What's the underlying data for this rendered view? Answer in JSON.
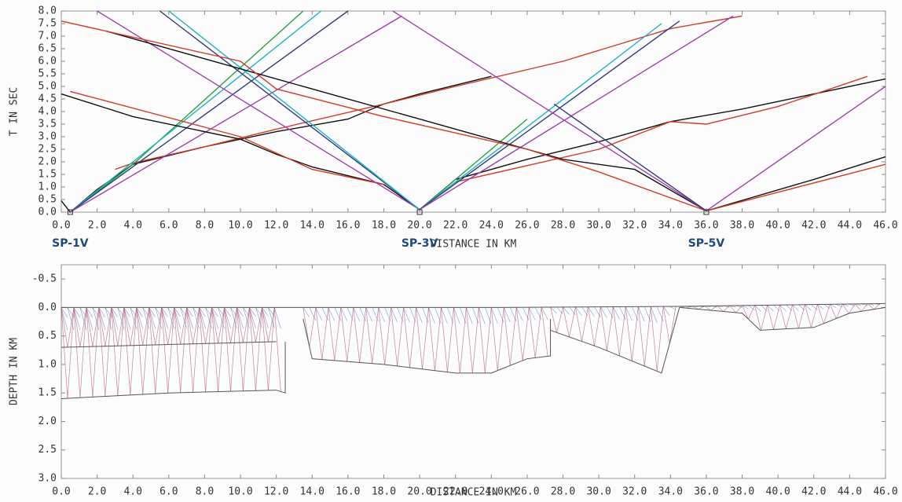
{
  "chart_data": [
    {
      "type": "line",
      "ylabel": "T IN SEC",
      "xlabel": "DISTANCE IN KM",
      "xlim": [
        0,
        46
      ],
      "ylim": [
        0,
        8
      ],
      "xticks": [
        {
          "value": 0,
          "label": "0.0"
        },
        {
          "value": 2,
          "label": "2.0"
        },
        {
          "value": 4,
          "label": "4.0"
        },
        {
          "value": 6,
          "label": "6.0"
        },
        {
          "value": 8,
          "label": "8.0"
        },
        {
          "value": 10,
          "label": "10.0"
        },
        {
          "value": 12,
          "label": "12.0"
        },
        {
          "value": 14,
          "label": "14.0"
        },
        {
          "value": 16,
          "label": "16.0"
        },
        {
          "value": 18,
          "label": "18.0"
        },
        {
          "value": 20,
          "label": "20.0"
        },
        {
          "value": 22,
          "label": "22.0"
        },
        {
          "value": 24,
          "label": "24.0"
        },
        {
          "value": 26,
          "label": "26.0"
        },
        {
          "value": 28,
          "label": "28.0"
        },
        {
          "value": 30,
          "label": "30.0"
        },
        {
          "value": 32,
          "label": "32.0"
        },
        {
          "value": 34,
          "label": "34.0"
        },
        {
          "value": 36,
          "label": "36.0"
        },
        {
          "value": 38,
          "label": "38.0"
        },
        {
          "value": 40,
          "label": "40.0"
        },
        {
          "value": 42,
          "label": "42.0"
        },
        {
          "value": 44,
          "label": "44.0"
        },
        {
          "value": 46,
          "label": "46.0"
        }
      ],
      "yticks": [
        {
          "value": 0,
          "label": "0.0"
        },
        {
          "value": 0.5,
          "label": "0.5"
        },
        {
          "value": 1,
          "label": "1.0"
        },
        {
          "value": 1.5,
          "label": "1.5"
        },
        {
          "value": 2,
          "label": "2.0"
        },
        {
          "value": 2.5,
          "label": "2.5"
        },
        {
          "value": 3,
          "label": "3.0"
        },
        {
          "value": 3.5,
          "label": "3.5"
        },
        {
          "value": 4,
          "label": "4.0"
        },
        {
          "value": 4.5,
          "label": "4.5"
        },
        {
          "value": 5,
          "label": "5.0"
        },
        {
          "value": 5.5,
          "label": "5.5"
        },
        {
          "value": 6,
          "label": "6.0"
        },
        {
          "value": 6.5,
          "label": "6.5"
        },
        {
          "value": 7,
          "label": "7.0"
        },
        {
          "value": 7.5,
          "label": "7.5"
        },
        {
          "value": 8,
          "label": "8.0"
        }
      ],
      "annotations": [
        {
          "text": "SP-1V",
          "x": 0.5
        },
        {
          "text": "SP-3V",
          "x": 20
        },
        {
          "text": "SP-5V",
          "x": 36
        }
      ],
      "series": [
        {
          "color": "#111111",
          "x": [
            0,
            0.5,
            2,
            4,
            8,
            12,
            16,
            18,
            20,
            24
          ],
          "values": [
            0.45,
            0,
            0.9,
            1.9,
            2.6,
            3.2,
            3.7,
            4.3,
            4.7,
            5.4
          ]
        },
        {
          "color": "#d03a2a",
          "x": [
            3,
            4,
            8,
            12,
            18,
            22,
            28,
            34,
            38
          ],
          "values": [
            1.7,
            1.95,
            2.6,
            3.3,
            4.3,
            5,
            6,
            7.3,
            7.8
          ]
        },
        {
          "color": "#2aa040",
          "x": [
            0.5,
            4,
            13.5
          ],
          "values": [
            0,
            1.9,
            8
          ]
        },
        {
          "color": "#20b0c0",
          "x": [
            0.5,
            14.5
          ],
          "values": [
            0,
            8
          ]
        },
        {
          "color": "#303a80",
          "x": [
            0.5,
            16
          ],
          "values": [
            0,
            8
          ]
        },
        {
          "color": "#a040b0",
          "x": [
            0.5,
            19
          ],
          "values": [
            0,
            7.8
          ]
        },
        {
          "color": "#111111",
          "x": [
            20,
            18,
            14,
            12,
            10,
            4,
            0
          ],
          "values": [
            0.1,
            1.1,
            1.8,
            2.3,
            2.9,
            3.8,
            4.7
          ]
        },
        {
          "color": "#d03a2a",
          "x": [
            18,
            14,
            10,
            0.5
          ],
          "values": [
            1.1,
            1.7,
            3,
            4.8
          ]
        },
        {
          "color": "#a040b0",
          "x": [
            20,
            2
          ],
          "values": [
            0.1,
            8
          ]
        },
        {
          "color": "#303a80",
          "x": [
            20,
            5.5
          ],
          "values": [
            0.1,
            8
          ]
        },
        {
          "color": "#20b0c0",
          "x": [
            20,
            6
          ],
          "values": [
            0.1,
            8
          ]
        },
        {
          "color": "#111111",
          "x": [
            20,
            22,
            26,
            30,
            34,
            38,
            46
          ],
          "values": [
            0.1,
            1.3,
            2.1,
            2.8,
            3.6,
            4.1,
            5.3
          ]
        },
        {
          "color": "#d03a2a",
          "x": [
            22,
            30,
            34,
            36,
            40,
            45
          ],
          "values": [
            1.2,
            2.5,
            3.6,
            3.5,
            4.2,
            5.4
          ]
        },
        {
          "color": "#2aa040",
          "x": [
            20,
            26
          ],
          "values": [
            0.1,
            3.7
          ]
        },
        {
          "color": "#20b0c0",
          "x": [
            20,
            33.5
          ],
          "values": [
            0.1,
            7.5
          ]
        },
        {
          "color": "#303a80",
          "x": [
            20,
            34.5
          ],
          "values": [
            0.1,
            7.6
          ]
        },
        {
          "color": "#a040b0",
          "x": [
            20,
            37.5
          ],
          "values": [
            0.1,
            7.8
          ]
        },
        {
          "color": "#111111",
          "x": [
            36,
            32,
            28,
            24,
            20,
            12,
            2.5
          ],
          "values": [
            0.05,
            1.7,
            2.1,
            2.9,
            3.7,
            5.3,
            7.2
          ]
        },
        {
          "color": "#d03a2a",
          "x": [
            36,
            30,
            26,
            18,
            12,
            10,
            0
          ],
          "values": [
            0.05,
            1.6,
            2.5,
            3.8,
            4.9,
            6,
            7.6
          ]
        },
        {
          "color": "#a040b0",
          "x": [
            36,
            18.5
          ],
          "values": [
            0.05,
            8
          ]
        },
        {
          "color": "#303a80",
          "x": [
            36,
            27.5
          ],
          "values": [
            0.05,
            4.3
          ]
        },
        {
          "color": "#111111",
          "x": [
            36,
            42,
            46
          ],
          "values": [
            0.05,
            1.3,
            2.2
          ]
        },
        {
          "color": "#d03a2a",
          "x": [
            36,
            46
          ],
          "values": [
            0.05,
            1.9
          ]
        },
        {
          "color": "#a040b0",
          "x": [
            36,
            46
          ],
          "values": [
            0.05,
            5
          ]
        }
      ]
    },
    {
      "type": "line",
      "ylabel": "DEPTH IN KM",
      "xlabel": "DISTANCE IN KM",
      "xlim": [
        0,
        46
      ],
      "ylim": [
        3,
        -0.75
      ],
      "xticks": [
        {
          "value": 0,
          "label": "0.0"
        },
        {
          "value": 2,
          "label": "2.0"
        },
        {
          "value": 4,
          "label": "4.0"
        },
        {
          "value": 6,
          "label": "6.0"
        },
        {
          "value": 8,
          "label": "8.0"
        },
        {
          "value": 10,
          "label": "10.0"
        },
        {
          "value": 12,
          "label": "12.0"
        },
        {
          "value": 14,
          "label": "14.0"
        },
        {
          "value": 16,
          "label": "16.0"
        },
        {
          "value": 18,
          "label": "18.0"
        },
        {
          "value": 20,
          "label": "20.0"
        },
        {
          "value": 22,
          "label": "22.0"
        },
        {
          "value": 24,
          "label": "24.0"
        },
        {
          "value": 26,
          "label": "26.0"
        },
        {
          "value": 28,
          "label": "28.0"
        },
        {
          "value": 30,
          "label": "30.0"
        },
        {
          "value": 32,
          "label": "32.0"
        },
        {
          "value": 34,
          "label": "34.0"
        },
        {
          "value": 36,
          "label": "36.0"
        },
        {
          "value": 38,
          "label": "38.0"
        },
        {
          "value": 40,
          "label": "40.0"
        },
        {
          "value": 42,
          "label": "42.0"
        },
        {
          "value": 44,
          "label": "44.0"
        },
        {
          "value": 46,
          "label": "46.0"
        }
      ],
      "yticks": [
        {
          "value": -0.5,
          "label": "-0.5"
        },
        {
          "value": 0,
          "label": "0.0"
        },
        {
          "value": 0.5,
          "label": "0.5"
        },
        {
          "value": 1,
          "label": "1.0"
        },
        {
          "value": 1.5,
          "label": "1.5"
        },
        {
          "value": 2,
          "label": "2.0"
        },
        {
          "value": 2.5,
          "label": "2.5"
        },
        {
          "value": 3,
          "label": "3.0"
        }
      ],
      "series": [
        {
          "color": "#555555",
          "x": [
            0,
            12,
            24,
            34.5,
            46
          ],
          "values": [
            0,
            0,
            0,
            -0.02,
            -0.07
          ]
        },
        {
          "color": "#555555",
          "x": [
            0,
            6,
            12,
            12.5,
            12.5
          ],
          "values": [
            1.6,
            1.5,
            1.45,
            1.5,
            0.6
          ]
        },
        {
          "color": "#555555",
          "x": [
            0,
            6,
            12
          ],
          "values": [
            0.7,
            0.65,
            0.6
          ]
        },
        {
          "color": "#555555",
          "x": [
            13.5,
            14,
            18,
            22,
            24,
            26,
            27.3,
            27.3
          ],
          "values": [
            0.2,
            0.9,
            1,
            1.15,
            1.15,
            0.9,
            0.85,
            0.2
          ]
        },
        {
          "color": "#555555",
          "x": [
            27.3,
            30,
            33.5,
            34.5
          ],
          "values": [
            0.4,
            0.7,
            1.15,
            0
          ]
        },
        {
          "color": "#555555",
          "x": [
            34.5,
            38,
            39,
            42,
            44,
            46
          ],
          "values": [
            0,
            0.1,
            0.4,
            0.35,
            0.1,
            0
          ]
        }
      ]
    }
  ]
}
